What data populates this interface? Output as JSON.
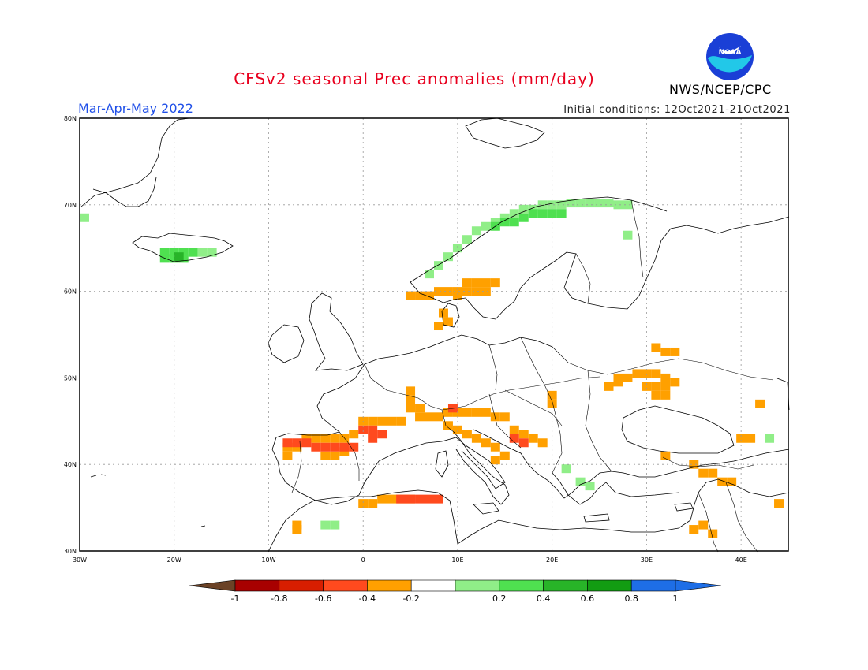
{
  "header": {
    "title": "CFSv2 seasonal Prec anomalies (mm/day)",
    "season": "Mar-Apr-May 2022",
    "initial_conditions": "Initial conditions: 12Oct2021-21Oct2021",
    "agency": "NWS/NCEP/CPC",
    "logo_text": "NOAA"
  },
  "map": {
    "lon_range": [
      -30,
      45
    ],
    "lat_range": [
      30,
      80
    ],
    "lon_ticks": [
      {
        "value": -30,
        "label": "30W"
      },
      {
        "value": -20,
        "label": "20W"
      },
      {
        "value": -10,
        "label": "10W"
      },
      {
        "value": 0,
        "label": "0"
      },
      {
        "value": 10,
        "label": "10E"
      },
      {
        "value": 20,
        "label": "20E"
      },
      {
        "value": 30,
        "label": "30E"
      },
      {
        "value": 40,
        "label": "40E"
      }
    ],
    "lat_ticks": [
      {
        "value": 30,
        "label": "30N"
      },
      {
        "value": 40,
        "label": "40N"
      },
      {
        "value": 50,
        "label": "50N"
      },
      {
        "value": 60,
        "label": "60N"
      },
      {
        "value": 70,
        "label": "70N"
      },
      {
        "value": 80,
        "label": "80N"
      }
    ],
    "grid": "dotted",
    "colors": {
      "coast": "#000000",
      "grid": "#9a9a9a",
      "frame": "#000000"
    }
  },
  "colorbar": {
    "labels": [
      "-1",
      "-0.8",
      "-0.6",
      "-0.4",
      "-0.2",
      "0.2",
      "0.4",
      "0.6",
      "0.8",
      "1"
    ],
    "colors": [
      "#6b4226",
      "#a80000",
      "#d81e00",
      "#ff4a1e",
      "#ffa000",
      "#ffffff",
      "#90ee88",
      "#4fe050",
      "#28b428",
      "#129c12",
      "#1e6ee6"
    ]
  },
  "anomalies": [
    {
      "name": "scandinavia-west-coast",
      "value": 0.3,
      "cells": [
        [
          7,
          62
        ],
        [
          8,
          63
        ],
        [
          9,
          64
        ],
        [
          10,
          65
        ],
        [
          11,
          66
        ],
        [
          12,
          67
        ],
        [
          13,
          67.5
        ],
        [
          14,
          68
        ],
        [
          15,
          68.5
        ],
        [
          16,
          69
        ],
        [
          17,
          69.5
        ],
        [
          18,
          69.5
        ],
        [
          19,
          70
        ],
        [
          20,
          70
        ],
        [
          21,
          70
        ],
        [
          22,
          70.2
        ],
        [
          23,
          70.2
        ],
        [
          24,
          70.2
        ],
        [
          25,
          70.2
        ],
        [
          26,
          70.2
        ],
        [
          27,
          70
        ],
        [
          28,
          70
        ]
      ]
    },
    {
      "name": "norway-north-inland",
      "value": 0.4,
      "cells": [
        [
          14,
          67.5
        ],
        [
          15,
          68
        ],
        [
          16,
          68
        ],
        [
          17,
          68.5
        ],
        [
          18,
          69
        ],
        [
          19,
          69
        ],
        [
          20,
          69
        ],
        [
          21,
          69
        ]
      ]
    },
    {
      "name": "kola-spot",
      "value": 0.3,
      "cells": [
        [
          28,
          66.5
        ]
      ]
    },
    {
      "name": "iceland-south",
      "value": 0.4,
      "cells": [
        [
          -21,
          64.5
        ],
        [
          -20,
          64.5
        ],
        [
          -19,
          64.5
        ],
        [
          -18,
          64.5
        ],
        [
          -21,
          63.8
        ],
        [
          -20,
          63.8
        ],
        [
          -19,
          63.8
        ]
      ]
    },
    {
      "name": "iceland-core",
      "value": 0.6,
      "cells": [
        [
          -19.5,
          64
        ]
      ]
    },
    {
      "name": "iceland-east",
      "value": 0.3,
      "cells": [
        [
          -17,
          64.5
        ],
        [
          -16,
          64.5
        ]
      ]
    },
    {
      "name": "greenland-spot",
      "value": 0.3,
      "cells": [
        [
          -29.5,
          68.5
        ]
      ]
    },
    {
      "name": "south-scandinavia",
      "value": -0.3,
      "cells": [
        [
          5,
          59.5
        ],
        [
          6,
          59.5
        ],
        [
          7,
          59.5
        ],
        [
          8,
          60
        ],
        [
          9,
          60
        ],
        [
          10,
          60
        ],
        [
          11,
          60
        ],
        [
          12,
          60
        ],
        [
          13,
          60
        ],
        [
          14,
          61
        ],
        [
          13,
          61
        ],
        [
          12,
          61
        ],
        [
          11,
          61
        ],
        [
          10,
          59.5
        ]
      ]
    },
    {
      "name": "denmark",
      "value": -0.3,
      "cells": [
        [
          8.5,
          57.5
        ],
        [
          9,
          56.5
        ],
        [
          8,
          56
        ]
      ]
    },
    {
      "name": "central-russia",
      "value": -0.3,
      "cells": [
        [
          31,
          53.5
        ],
        [
          32,
          53
        ],
        [
          33,
          53
        ],
        [
          27,
          50
        ],
        [
          28,
          50
        ],
        [
          29,
          50.5
        ],
        [
          30,
          50.5
        ],
        [
          31,
          50.5
        ],
        [
          32,
          50
        ],
        [
          33,
          49.5
        ],
        [
          30,
          49
        ],
        [
          31,
          49
        ],
        [
          32,
          49
        ],
        [
          26,
          49
        ],
        [
          27,
          49.5
        ],
        [
          31,
          48
        ],
        [
          32,
          48
        ]
      ]
    },
    {
      "name": "france-italy",
      "value": -0.3,
      "cells": [
        [
          0,
          45
        ],
        [
          1,
          45
        ],
        [
          2,
          45
        ],
        [
          3,
          45
        ],
        [
          4,
          45
        ],
        [
          5,
          46.5
        ],
        [
          5,
          47.5
        ],
        [
          5,
          48.5
        ],
        [
          6,
          46.5
        ],
        [
          6,
          45.5
        ],
        [
          7,
          45.5
        ],
        [
          8,
          45.5
        ],
        [
          9,
          46
        ],
        [
          10,
          46
        ],
        [
          11,
          46
        ],
        [
          12,
          46
        ],
        [
          13,
          46
        ],
        [
          14,
          45.5
        ],
        [
          15,
          45.5
        ],
        [
          9,
          44.5
        ],
        [
          10,
          44
        ],
        [
          11,
          43.5
        ],
        [
          12,
          43
        ],
        [
          13,
          42.5
        ],
        [
          14,
          42
        ],
        [
          15,
          41
        ],
        [
          14,
          40.5
        ],
        [
          -1,
          43.5
        ],
        [
          -2,
          43
        ],
        [
          -3,
          43
        ],
        [
          -4,
          43
        ],
        [
          -5,
          43
        ],
        [
          -6,
          43
        ],
        [
          -7,
          42
        ],
        [
          -8,
          42
        ],
        [
          -8,
          41
        ],
        [
          -4,
          41
        ],
        [
          -3,
          41
        ],
        [
          -2,
          41.5
        ],
        [
          16,
          44
        ],
        [
          17,
          43.5
        ],
        [
          18,
          43
        ],
        [
          19,
          42.5
        ],
        [
          20,
          48
        ],
        [
          20,
          47
        ],
        [
          32,
          41
        ],
        [
          35,
          40
        ],
        [
          36,
          39
        ],
        [
          37,
          39
        ],
        [
          38,
          38
        ],
        [
          39,
          38
        ],
        [
          40,
          43
        ],
        [
          41,
          43
        ],
        [
          42,
          47
        ],
        [
          44,
          35.5
        ],
        [
          35,
          32.5
        ],
        [
          36,
          33
        ],
        [
          37,
          32
        ]
      ]
    },
    {
      "name": "france-italy-strong",
      "value": -0.5,
      "cells": [
        [
          0,
          44
        ],
        [
          1,
          44
        ],
        [
          2,
          43.5
        ],
        [
          1,
          43
        ],
        [
          -8,
          42.5
        ],
        [
          -7,
          42.5
        ],
        [
          -6,
          42.5
        ],
        [
          -5,
          42
        ],
        [
          -4,
          42
        ],
        [
          -3,
          42
        ],
        [
          -2,
          42
        ],
        [
          -1,
          42
        ],
        [
          9.5,
          46.5
        ],
        [
          16,
          43
        ],
        [
          17,
          42.5
        ]
      ]
    },
    {
      "name": "north-africa",
      "value": -0.3,
      "cells": [
        [
          0,
          35.5
        ],
        [
          1,
          35.5
        ],
        [
          2,
          36
        ],
        [
          3,
          36
        ],
        [
          4,
          36
        ],
        [
          5,
          36
        ],
        [
          -7,
          33
        ],
        [
          -7,
          32.5
        ]
      ]
    },
    {
      "name": "north-africa-strong",
      "value": -0.5,
      "cells": [
        [
          4,
          36
        ],
        [
          5,
          36
        ],
        [
          6,
          36
        ],
        [
          7,
          36
        ],
        [
          8,
          36
        ]
      ]
    },
    {
      "name": "morocco-green",
      "value": 0.3,
      "cells": [
        [
          -4,
          33
        ],
        [
          -3,
          33
        ]
      ]
    },
    {
      "name": "greece-green",
      "value": 0.3,
      "cells": [
        [
          21.5,
          39.5
        ],
        [
          23,
          38
        ],
        [
          24,
          37.5
        ]
      ]
    },
    {
      "name": "caucasus-green",
      "value": 0.3,
      "cells": [
        [
          43,
          43
        ]
      ]
    }
  ]
}
